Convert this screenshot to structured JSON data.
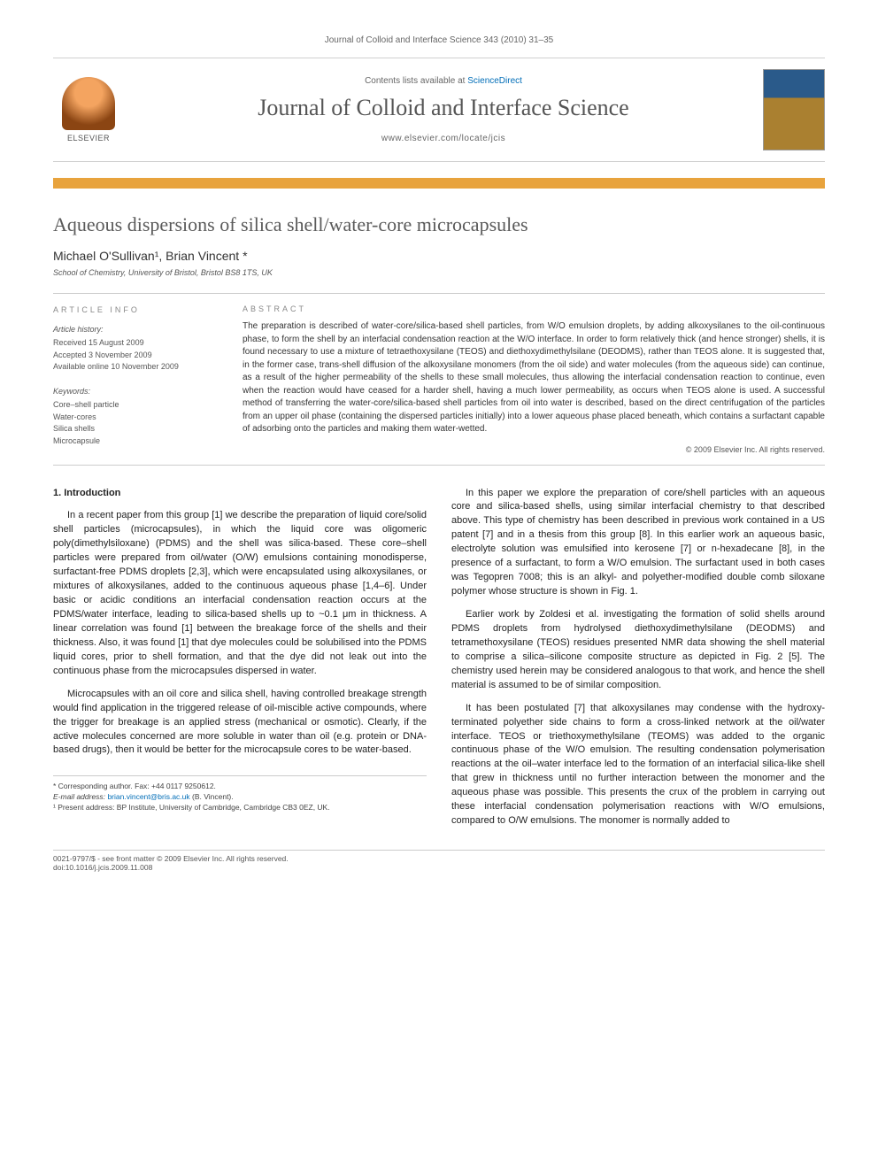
{
  "top_citation": "Journal of Colloid and Interface Science 343 (2010) 31–35",
  "header": {
    "publisher_label": "ELSEVIER",
    "contents_prefix": "Contents lists available at ",
    "contents_link": "ScienceDirect",
    "journal_name": "Journal of Colloid and Interface Science",
    "journal_url": "www.elsevier.com/locate/jcis"
  },
  "article": {
    "title": "Aqueous dispersions of silica shell/water-core microcapsules",
    "authors_html": "Michael O'Sullivan¹, Brian Vincent *",
    "affiliation": "School of Chemistry, University of Bristol, Bristol BS8 1TS, UK"
  },
  "info": {
    "section_label": "ARTICLE INFO",
    "history_label": "Article history:",
    "received": "Received 15 August 2009",
    "accepted": "Accepted 3 November 2009",
    "online": "Available online 10 November 2009",
    "keywords_label": "Keywords:",
    "keywords": [
      "Core–shell particle",
      "Water-cores",
      "Silica shells",
      "Microcapsule"
    ]
  },
  "abstract": {
    "section_label": "ABSTRACT",
    "text": "The preparation is described of water-core/silica-based shell particles, from W/O emulsion droplets, by adding alkoxysilanes to the oil-continuous phase, to form the shell by an interfacial condensation reaction at the W/O interface. In order to form relatively thick (and hence stronger) shells, it is found necessary to use a mixture of tetraethoxysilane (TEOS) and diethoxydimethylsilane (DEODMS), rather than TEOS alone. It is suggested that, in the former case, trans-shell diffusion of the alkoxysilane monomers (from the oil side) and water molecules (from the aqueous side) can continue, as a result of the higher permeability of the shells to these small molecules, thus allowing the interfacial condensation reaction to continue, even when the reaction would have ceased for a harder shell, having a much lower permeability, as occurs when TEOS alone is used. A successful method of transferring the water-core/silica-based shell particles from oil into water is described, based on the direct centrifugation of the particles from an upper oil phase (containing the dispersed particles initially) into a lower aqueous phase placed beneath, which contains a surfactant capable of adsorbing onto the particles and making them water-wetted.",
    "copyright": "© 2009 Elsevier Inc. All rights reserved."
  },
  "body": {
    "heading": "1. Introduction",
    "left_paras": [
      "In a recent paper from this group [1] we describe the preparation of liquid core/solid shell particles (microcapsules), in which the liquid core was oligomeric poly(dimethylsiloxane) (PDMS) and the shell was silica-based. These core–shell particles were prepared from oil/water (O/W) emulsions containing monodisperse, surfactant-free PDMS droplets [2,3], which were encapsulated using alkoxysilanes, or mixtures of alkoxysilanes, added to the continuous aqueous phase [1,4–6]. Under basic or acidic conditions an interfacial condensation reaction occurs at the PDMS/water interface, leading to silica-based shells up to ~0.1 μm in thickness. A linear correlation was found [1] between the breakage force of the shells and their thickness. Also, it was found [1] that dye molecules could be solubilised into the PDMS liquid cores, prior to shell formation, and that the dye did not leak out into the continuous phase from the microcapsules dispersed in water.",
      "Microcapsules with an oil core and silica shell, having controlled breakage strength would find application in the triggered release of oil-miscible active compounds, where the trigger for breakage is an applied stress (mechanical or osmotic). Clearly, if the active molecules concerned are more soluble in water than oil (e.g. protein or DNA-based drugs), then it would be better for the microcapsule cores to be water-based."
    ],
    "right_paras": [
      "In this paper we explore the preparation of core/shell particles with an aqueous core and silica-based shells, using similar interfacial chemistry to that described above. This type of chemistry has been described in previous work contained in a US patent [7] and in a thesis from this group [8]. In this earlier work an aqueous basic, electrolyte solution was emulsified into kerosene [7] or n-hexadecane [8], in the presence of a surfactant, to form a W/O emulsion. The surfactant used in both cases was Tegopren 7008; this is an alkyl- and polyether-modified double comb siloxane polymer whose structure is shown in Fig. 1.",
      "Earlier work by Zoldesi et al. investigating the formation of solid shells around PDMS droplets from hydrolysed diethoxydimethylsilane (DEODMS) and tetramethoxysilane (TEOS) residues presented NMR data showing the shell material to comprise a silica–silicone composite structure as depicted in Fig. 2 [5]. The chemistry used herein may be considered analogous to that work, and hence the shell material is assumed to be of similar composition.",
      "It has been postulated [7] that alkoxysilanes may condense with the hydroxy-terminated polyether side chains to form a cross-linked network at the oil/water interface. TEOS or triethoxymethylsilane (TEOMS) was added to the organic continuous phase of the W/O emulsion. The resulting condensation polymerisation reactions at the oil–water interface led to the formation of an interfacial silica-like shell that grew in thickness until no further interaction between the monomer and the aqueous phase was possible. This presents the crux of the problem in carrying out these interfacial condensation polymerisation reactions with W/O emulsions, compared to O/W emulsions. The monomer is normally added to"
    ]
  },
  "footnotes": {
    "corresponding": "* Corresponding author. Fax: +44 0117 9250612.",
    "email_label": "E-mail address:",
    "email": "brian.vincent@bris.ac.uk",
    "email_suffix": "(B. Vincent).",
    "present": "¹ Present address: BP Institute, University of Cambridge, Cambridge CB3 0EZ, UK."
  },
  "footer": {
    "line1": "0021-9797/$ - see front matter © 2009 Elsevier Inc. All rights reserved.",
    "line2": "doi:10.1016/j.jcis.2009.11.008"
  },
  "colors": {
    "accent_orange": "#e8a33d",
    "link_blue": "#006db7",
    "text_gray": "#555555"
  }
}
